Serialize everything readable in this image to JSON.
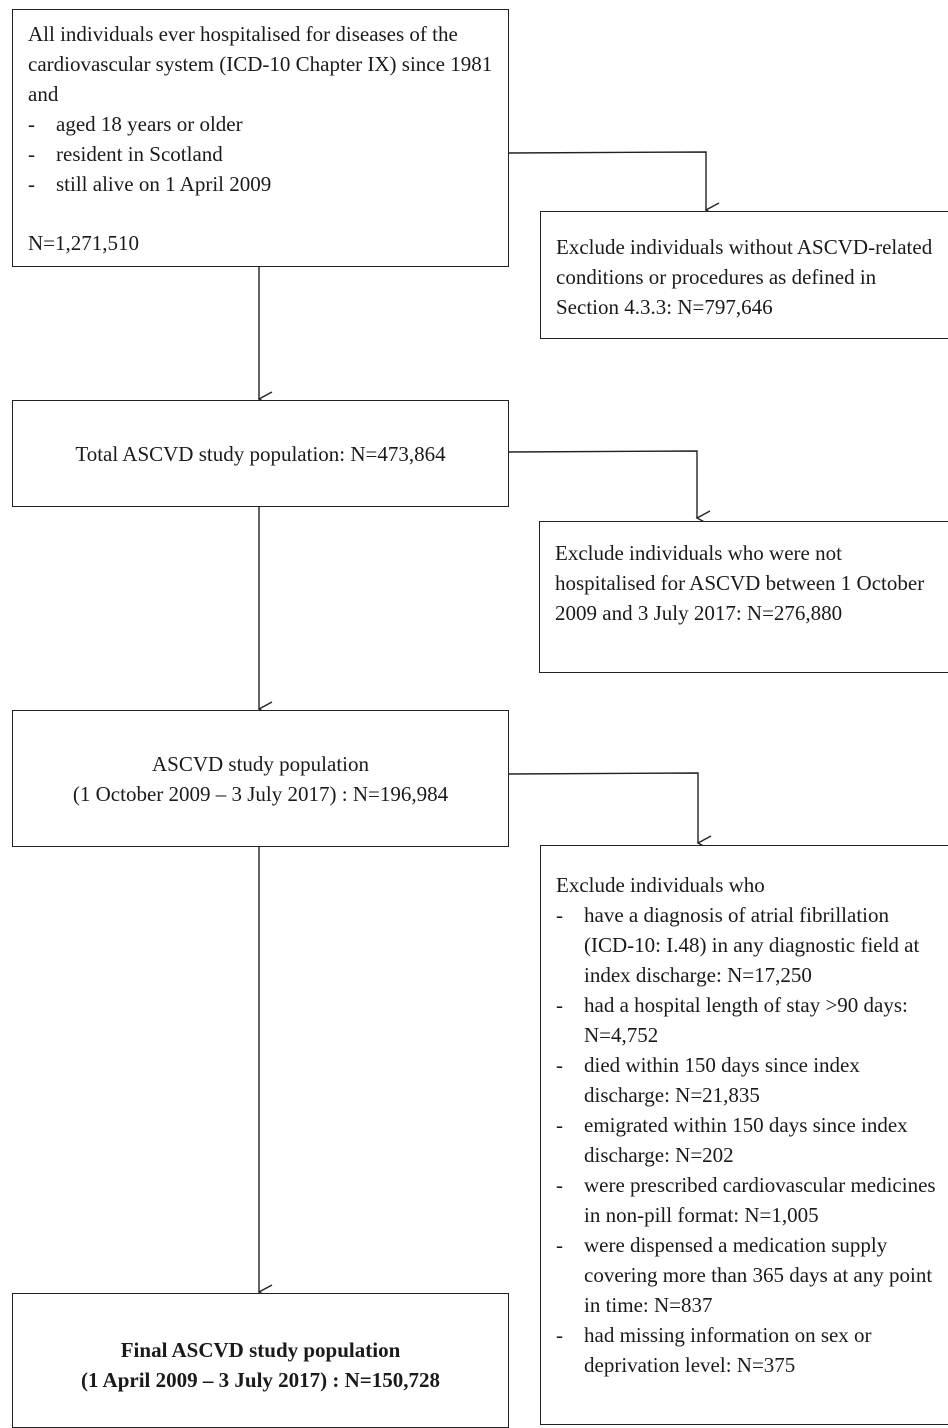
{
  "box1": {
    "intro": "All individuals ever hospitalised for diseases of the cardiovascular system (ICD-10 Chapter IX) since 1981 and",
    "items": [
      "aged 18 years or older",
      "resident in Scotland",
      "still alive on 1 April 2009"
    ],
    "count": "N=1,271,510"
  },
  "exclude1": "Exclude individuals without ASCVD-related conditions or procedures as defined in Section 4.3.3: N=797,646",
  "box2": "Total ASCVD study population: N=473,864",
  "exclude2": "Exclude individuals who were not hospitalised for ASCVD between 1 October 2009 and 3 July 2017: N=276,880",
  "box3": {
    "line1": "ASCVD study population",
    "line2": "(1 October 2009 – 3 July 2017) : N=196,984"
  },
  "exclude3": {
    "intro": "Exclude individuals who",
    "items": [
      "have a diagnosis of atrial fibrillation (ICD-10: I.48) in any diagnostic field at index discharge: N=17,250",
      "had a hospital length of stay >90 days: N=4,752",
      "died within 150 days since index discharge: N=21,835",
      "emigrated within 150 days since index discharge: N=202",
      "were prescribed cardiovascular medicines in non-pill format: N=1,005",
      "were dispensed a medication supply covering more than 365 days at any point in time: N=837",
      "had missing information on sex or deprivation level: N=375"
    ]
  },
  "box4": {
    "line1": "Final ASCVD study population",
    "line2": "(1 April 2009 – 3 July 2017) : N=150,728"
  },
  "dash_glyph": "-"
}
